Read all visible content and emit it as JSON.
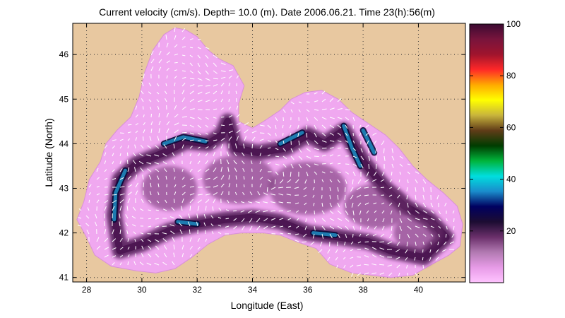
{
  "chart_data": {
    "type": "heatmap",
    "title": "Current velocity (cm/s). Depth= 10.0 (m). Date 2006.06.21. Time 23(h):56(m)",
    "xlabel": "Longitude (East)",
    "ylabel": "Latitude (North)",
    "xlim": [
      27.5,
      41.7
    ],
    "ylim": [
      40.9,
      46.7
    ],
    "x_ticks": [
      28,
      30,
      32,
      34,
      36,
      38,
      40
    ],
    "y_ticks": [
      41,
      42,
      43,
      44,
      45,
      46
    ],
    "x_tick_labels": [
      "28",
      "30",
      "32",
      "34",
      "36",
      "38",
      "40"
    ],
    "y_tick_labels": [
      "41",
      "42",
      "43",
      "44",
      "45",
      "46"
    ],
    "grid": true,
    "colorbar": {
      "range": [
        0,
        100
      ],
      "ticks": [
        20,
        40,
        60,
        80,
        100
      ],
      "tick_labels": [
        "20",
        "40",
        "60",
        "80",
        "100"
      ],
      "colors": [
        "#ffc4ff",
        "#e79be7",
        "#b27ab2",
        "#6a2f6a",
        "#1c0c32",
        "#000060",
        "#1a8ccc",
        "#00dede",
        "#00b43c",
        "#003c00",
        "#603c18",
        "#c8b43c",
        "#ffff00",
        "#ffaa00",
        "#ff2828",
        "#a0142d",
        "#78143c",
        "#3c0a32"
      ]
    },
    "land_color": "#e8c8a0",
    "sea_color": "#f0a8f0",
    "jet_color": "#4a1450",
    "jet_core_color": "#1e7bb0",
    "arrow_color": "#ffffff"
  }
}
